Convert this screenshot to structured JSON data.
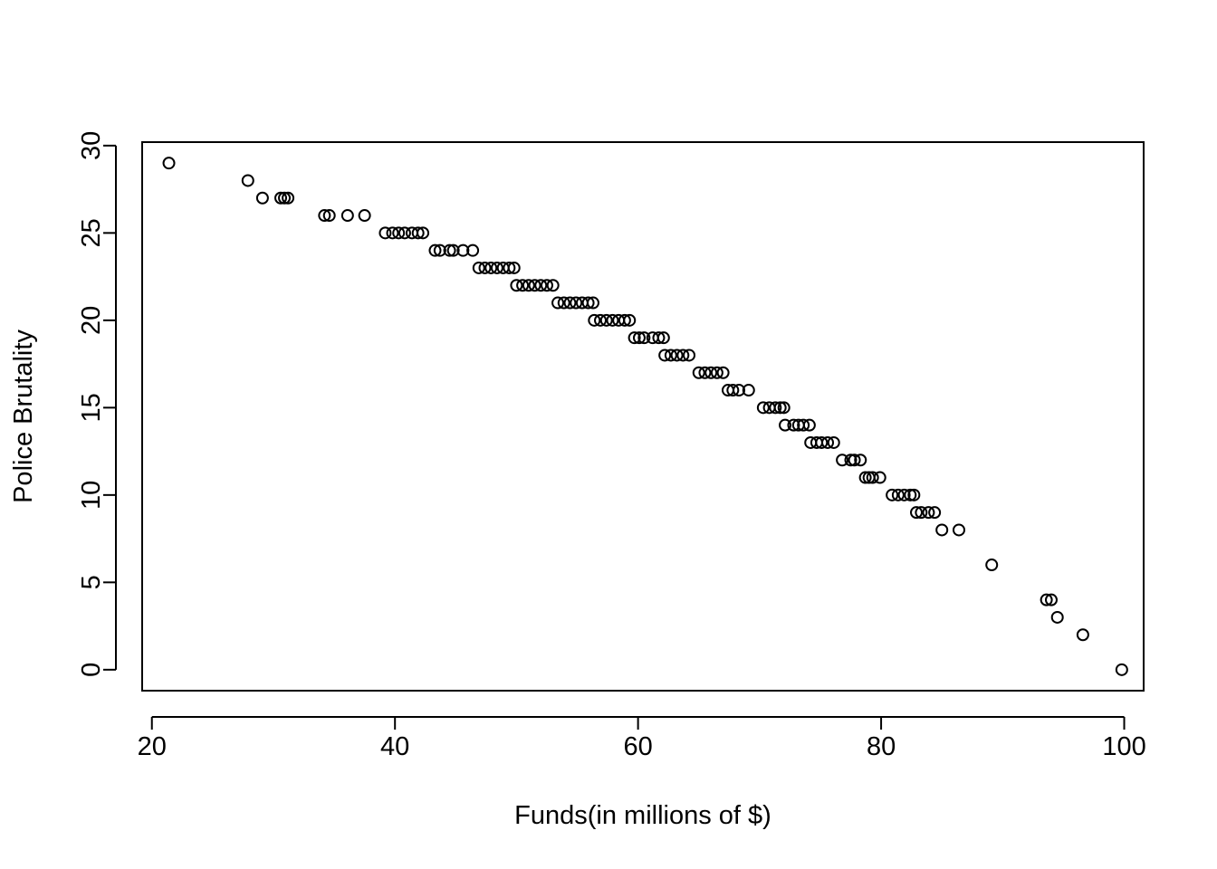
{
  "chart_data": {
    "type": "scatter",
    "title": "",
    "xlabel": "Funds(in millions of $)",
    "ylabel": "Police Brutality",
    "xlim": [
      19.2,
      101.6
    ],
    "ylim": [
      -1.2,
      30.2
    ],
    "xticks": [
      20,
      40,
      60,
      80,
      100
    ],
    "yticks": [
      0,
      5,
      10,
      15,
      20,
      25,
      30
    ],
    "grid": false,
    "legend": "none",
    "marker": "open-circle",
    "series": [
      {
        "points": [
          [
            21.4,
            29
          ],
          [
            27.9,
            28
          ],
          [
            29.1,
            27
          ],
          [
            30.6,
            27
          ],
          [
            30.9,
            27
          ],
          [
            31.2,
            27
          ],
          [
            34.2,
            26
          ],
          [
            34.6,
            26
          ],
          [
            36.1,
            26
          ],
          [
            37.5,
            26
          ],
          [
            39.2,
            25
          ],
          [
            39.8,
            25
          ],
          [
            40.3,
            25
          ],
          [
            40.8,
            25
          ],
          [
            41.4,
            25
          ],
          [
            41.9,
            25
          ],
          [
            42.3,
            25
          ],
          [
            43.3,
            24
          ],
          [
            43.7,
            24
          ],
          [
            44.5,
            24
          ],
          [
            44.8,
            24
          ],
          [
            45.6,
            24
          ],
          [
            46.4,
            24
          ],
          [
            46.9,
            23
          ],
          [
            47.4,
            23
          ],
          [
            47.9,
            23
          ],
          [
            48.4,
            23
          ],
          [
            48.9,
            23
          ],
          [
            49.4,
            23
          ],
          [
            49.8,
            23
          ],
          [
            50.0,
            22
          ],
          [
            50.5,
            22
          ],
          [
            51.0,
            22
          ],
          [
            51.5,
            22
          ],
          [
            52.0,
            22
          ],
          [
            52.5,
            22
          ],
          [
            53.0,
            22
          ],
          [
            53.4,
            21
          ],
          [
            53.9,
            21
          ],
          [
            54.4,
            21
          ],
          [
            54.9,
            21
          ],
          [
            55.4,
            21
          ],
          [
            55.9,
            21
          ],
          [
            56.3,
            21
          ],
          [
            56.4,
            20
          ],
          [
            56.9,
            20
          ],
          [
            57.4,
            20
          ],
          [
            57.9,
            20
          ],
          [
            58.4,
            20
          ],
          [
            58.9,
            20
          ],
          [
            59.3,
            20
          ],
          [
            59.7,
            19
          ],
          [
            60.1,
            19
          ],
          [
            60.5,
            19
          ],
          [
            61.2,
            19
          ],
          [
            61.7,
            19
          ],
          [
            62.1,
            19
          ],
          [
            62.2,
            18
          ],
          [
            62.7,
            18
          ],
          [
            63.2,
            18
          ],
          [
            63.7,
            18
          ],
          [
            64.2,
            18
          ],
          [
            65.0,
            17
          ],
          [
            65.5,
            17
          ],
          [
            66.0,
            17
          ],
          [
            66.5,
            17
          ],
          [
            67.0,
            17
          ],
          [
            67.4,
            16
          ],
          [
            67.8,
            16
          ],
          [
            68.3,
            16
          ],
          [
            69.1,
            16
          ],
          [
            70.3,
            15
          ],
          [
            70.8,
            15
          ],
          [
            71.3,
            15
          ],
          [
            71.7,
            15
          ],
          [
            72.0,
            15
          ],
          [
            72.1,
            14
          ],
          [
            72.8,
            14
          ],
          [
            73.2,
            14
          ],
          [
            73.6,
            14
          ],
          [
            74.1,
            14
          ],
          [
            74.2,
            13
          ],
          [
            74.7,
            13
          ],
          [
            75.1,
            13
          ],
          [
            75.6,
            13
          ],
          [
            76.1,
            13
          ],
          [
            76.8,
            12
          ],
          [
            77.5,
            12
          ],
          [
            77.8,
            12
          ],
          [
            78.3,
            12
          ],
          [
            78.7,
            11
          ],
          [
            79.0,
            11
          ],
          [
            79.3,
            11
          ],
          [
            79.9,
            11
          ],
          [
            80.9,
            10
          ],
          [
            81.4,
            10
          ],
          [
            81.9,
            10
          ],
          [
            82.4,
            10
          ],
          [
            82.7,
            10
          ],
          [
            82.9,
            9
          ],
          [
            83.3,
            9
          ],
          [
            83.9,
            9
          ],
          [
            84.4,
            9
          ],
          [
            85.0,
            8
          ],
          [
            86.4,
            8
          ],
          [
            89.1,
            6
          ],
          [
            93.6,
            4
          ],
          [
            94.0,
            4
          ],
          [
            94.5,
            3
          ],
          [
            96.6,
            2
          ],
          [
            99.8,
            0
          ]
        ]
      }
    ]
  }
}
